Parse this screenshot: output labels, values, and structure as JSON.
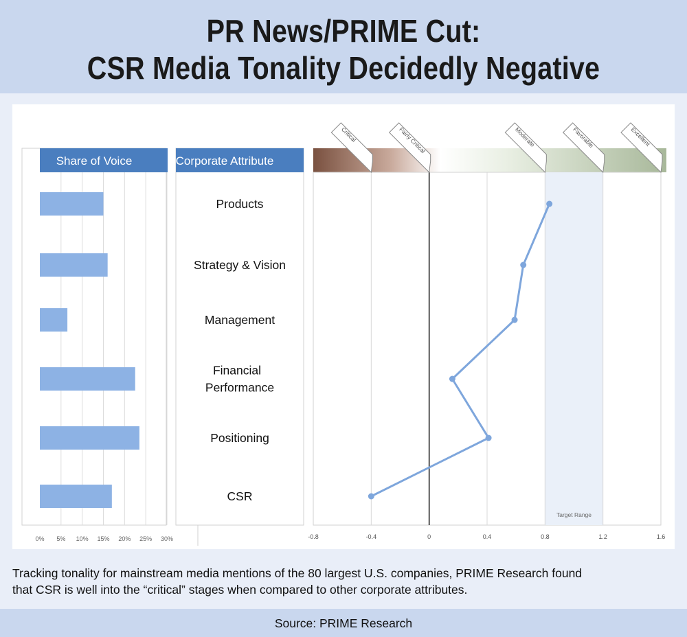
{
  "header": {
    "title_line1": "PR News/PRIME Cut:",
    "title_line2": "CSR Media Tonality Decidedly Negative"
  },
  "caption": {
    "line1": "Tracking tonality for mainstream media mentions of the 80 largest U.S. companies, PRIME Research found",
    "line2": "that CSR is well into the “critical” stages when compared to other corporate attributes."
  },
  "footer": {
    "source": "Source: PRIME Research"
  },
  "colors": {
    "header_bg": "#c9d7ee",
    "panel_header": "#4a7ebf",
    "bar": "#8db2e4",
    "line": "#7ea6dc",
    "target_range": "#eaf0f9"
  },
  "chart_data": [
    {
      "type": "bar",
      "orientation": "horizontal",
      "title": "Share of Voice",
      "categories": [
        "Products",
        "Strategy & Vision",
        "Management",
        "Financial Performance",
        "Positioning",
        "CSR"
      ],
      "values": [
        15,
        16,
        6.5,
        22.5,
        23.5,
        17
      ],
      "xlim": [
        0,
        30
      ],
      "ticks": [
        "0%",
        "5%",
        "10%",
        "15%",
        "20%",
        "25%",
        "30%"
      ],
      "grid": true
    },
    {
      "type": "table",
      "title": "Corporate Attribute",
      "rows": [
        "Products",
        "Strategy & Vision",
        "Management",
        "Financial\nPerformance",
        "Positioning",
        "CSR"
      ]
    },
    {
      "type": "line",
      "categories": [
        "Products",
        "Strategy & Vision",
        "Management",
        "Financial Performance",
        "Positioning",
        "CSR"
      ],
      "values": [
        0.83,
        0.65,
        0.59,
        0.16,
        0.41,
        -0.4
      ],
      "xlim": [
        -0.8,
        1.6
      ],
      "ticks": [
        "-0.8",
        "-0.4",
        "0",
        "0.4",
        "0.8",
        "1.2",
        "1.6"
      ],
      "tick_values": [
        -0.8,
        -0.4,
        0,
        0.4,
        0.8,
        1.2,
        1.6
      ],
      "target_range": {
        "from": 0.8,
        "to": 1.2,
        "label": "Target Range"
      },
      "scale_labels": [
        {
          "label": "Critical",
          "at": -0.4
        },
        {
          "label": "Fairly Critical",
          "at": 0
        },
        {
          "label": "Moderate",
          "at": 0.8
        },
        {
          "label": "Favorable",
          "at": 1.2
        },
        {
          "label": "Excellent",
          "at": 1.6
        }
      ],
      "grid": true
    }
  ]
}
